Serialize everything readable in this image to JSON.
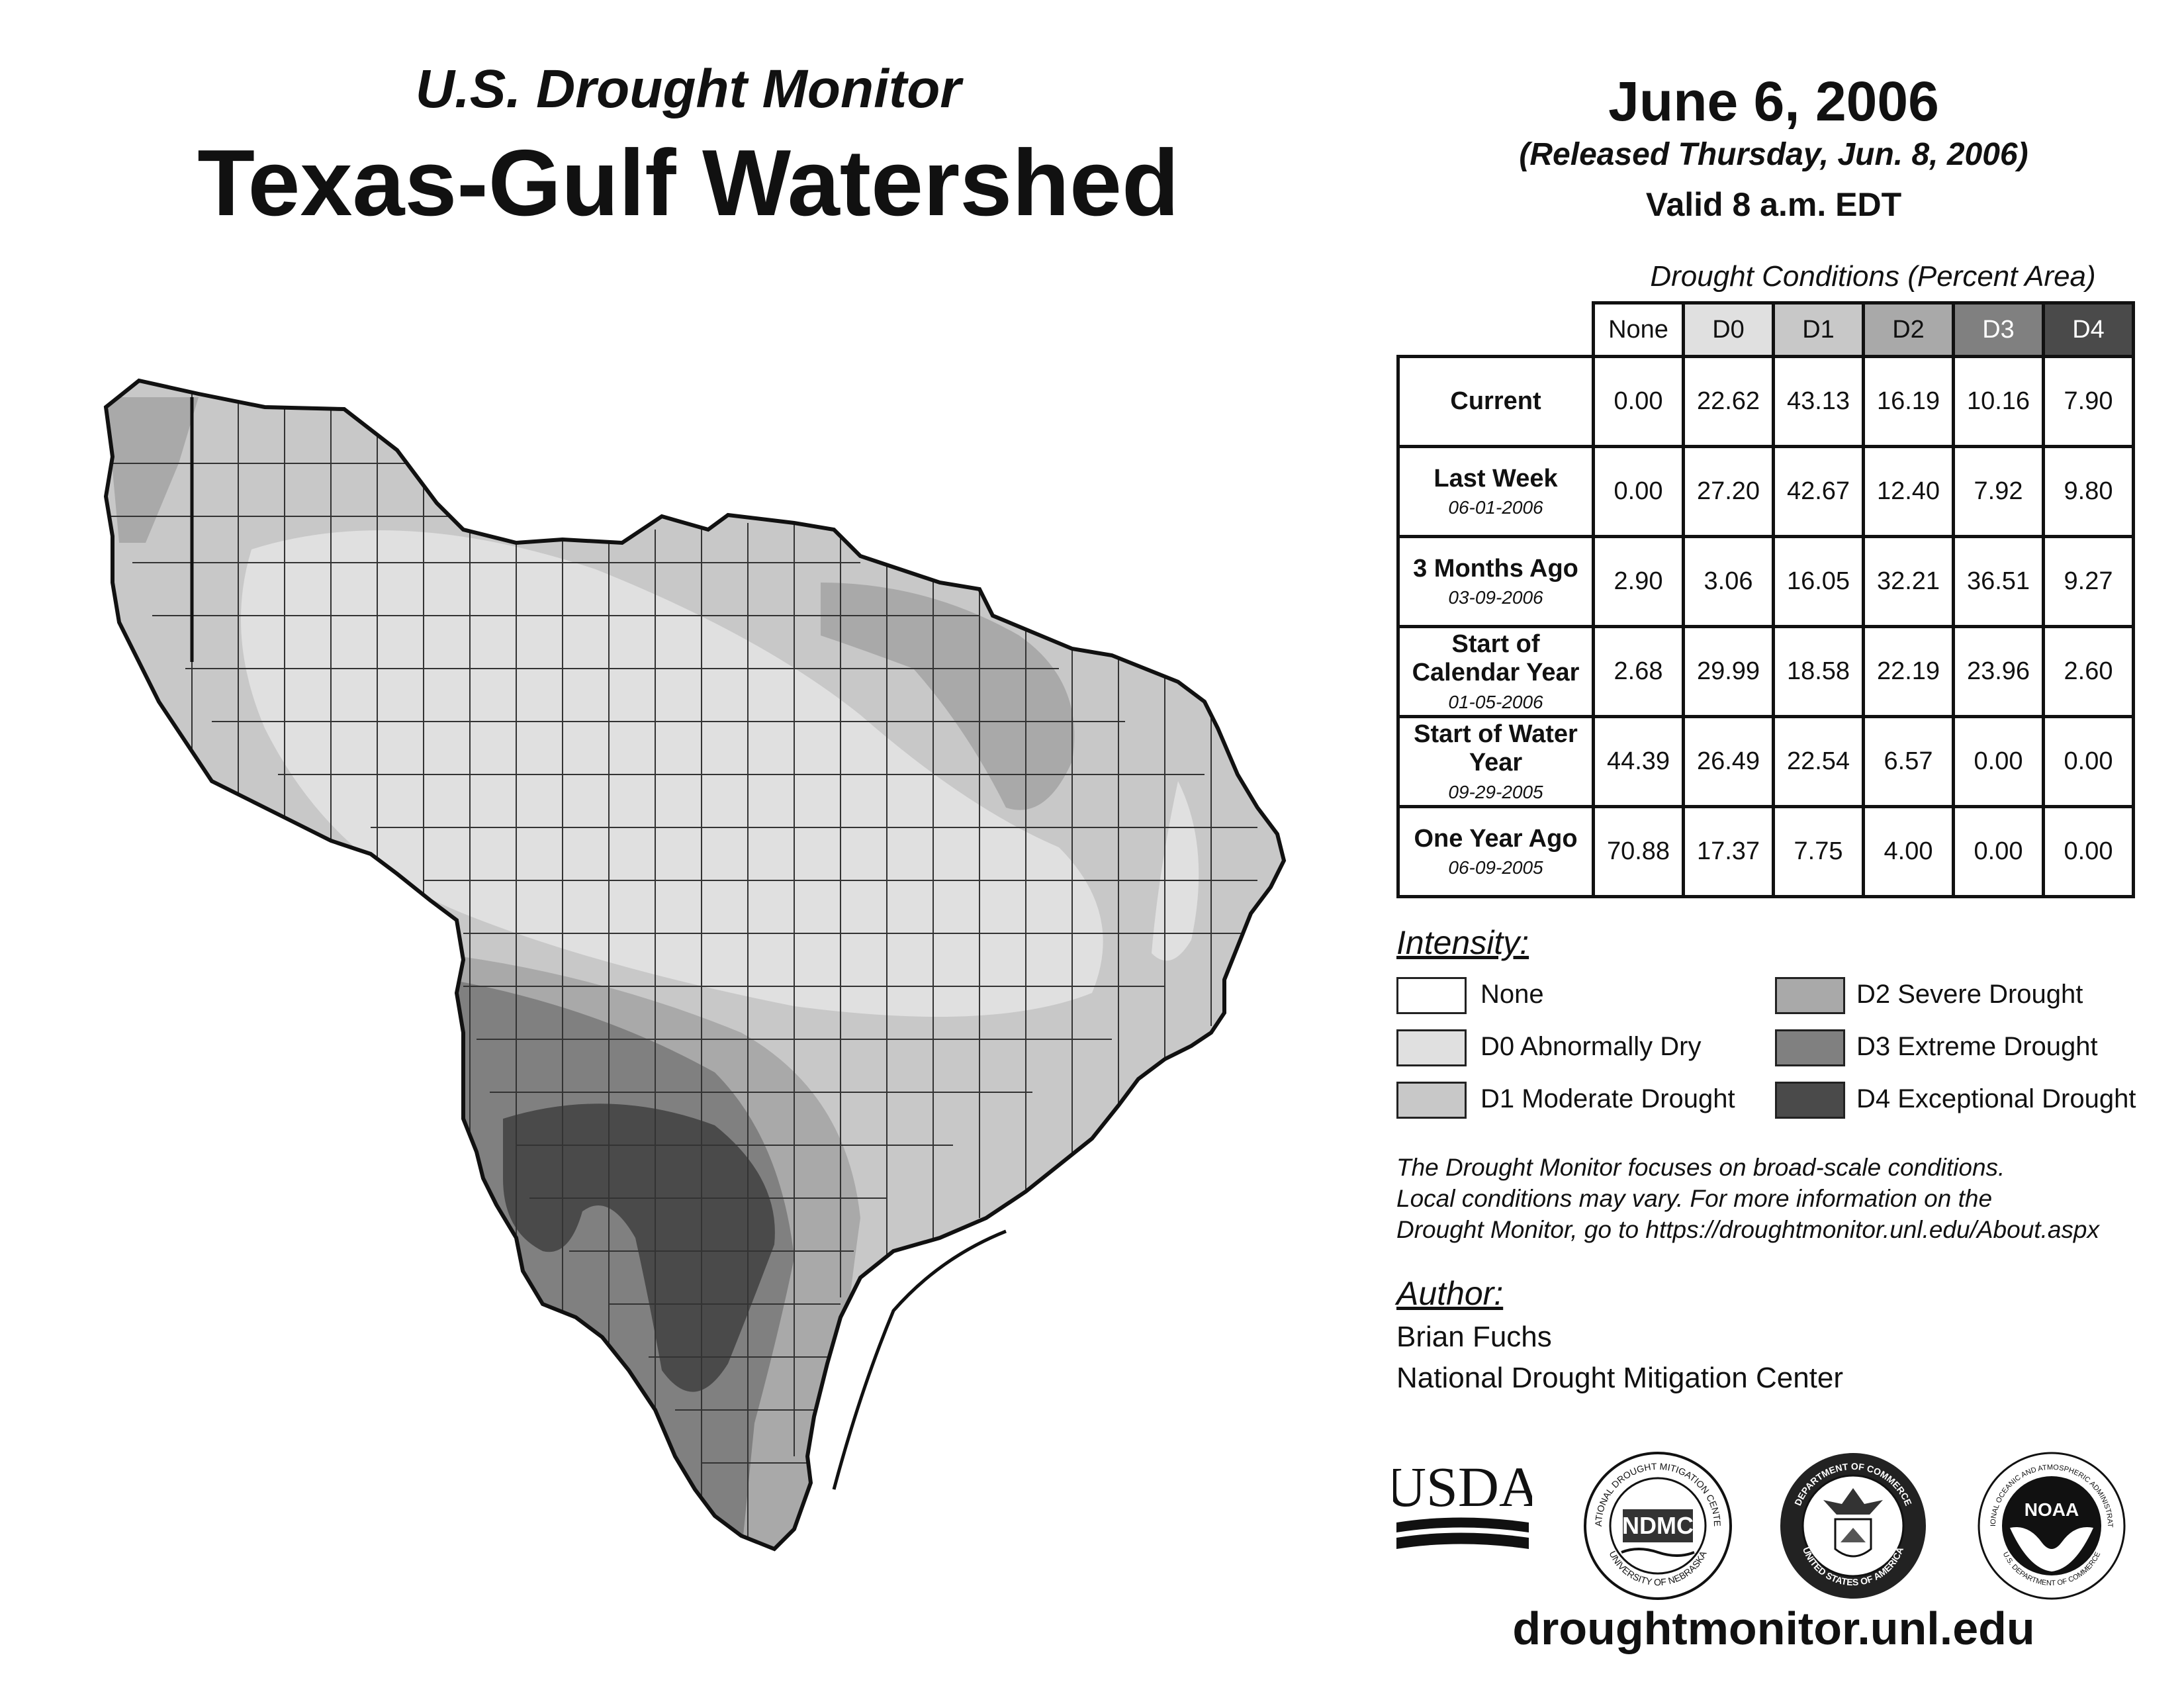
{
  "header": {
    "subtitle": "U.S. Drought Monitor",
    "title": "Texas-Gulf Watershed",
    "date": "June 6, 2006",
    "released": "(Released Thursday, Jun. 8, 2006)",
    "valid": "Valid 8 a.m. EDT"
  },
  "table": {
    "title": "Drought Conditions (Percent Area)",
    "columns": [
      "None",
      "D0",
      "D1",
      "D2",
      "D3",
      "D4"
    ],
    "rows": [
      {
        "label": "Current",
        "date": "",
        "values": [
          "0.00",
          "22.62",
          "43.13",
          "16.19",
          "10.16",
          "7.90"
        ]
      },
      {
        "label": "Last Week",
        "date": "06-01-2006",
        "values": [
          "0.00",
          "27.20",
          "42.67",
          "12.40",
          "7.92",
          "9.80"
        ]
      },
      {
        "label": "3 Months Ago",
        "date": "03-09-2006",
        "values": [
          "2.90",
          "3.06",
          "16.05",
          "32.21",
          "36.51",
          "9.27"
        ]
      },
      {
        "label": "Start of Calendar Year",
        "date": "01-05-2006",
        "values": [
          "2.68",
          "29.99",
          "18.58",
          "22.19",
          "23.96",
          "2.60"
        ]
      },
      {
        "label": "Start of Water Year",
        "date": "09-29-2005",
        "values": [
          "44.39",
          "26.49",
          "22.54",
          "6.57",
          "0.00",
          "0.00"
        ]
      },
      {
        "label": "One Year Ago",
        "date": "06-09-2005",
        "values": [
          "70.88",
          "17.37",
          "7.75",
          "4.00",
          "0.00",
          "0.00"
        ]
      }
    ]
  },
  "legend": {
    "heading": "Intensity:",
    "items": [
      {
        "label": "None",
        "color": "#ffffff"
      },
      {
        "label": "D0 Abnormally Dry",
        "color": "#e0e0e0"
      },
      {
        "label": "D1 Moderate Drought",
        "color": "#c8c8c8"
      },
      {
        "label": "D2 Severe Drought",
        "color": "#a9a9a9"
      },
      {
        "label": "D3 Extreme Drought",
        "color": "#808080"
      },
      {
        "label": "D4 Exceptional Drought",
        "color": "#4a4a4a"
      }
    ]
  },
  "disclaimer": {
    "line1": "The Drought Monitor focuses on broad-scale conditions.",
    "line2": "Local conditions may vary. For more information on the",
    "line3": "Drought Monitor, go to https://droughtmonitor.unl.edu/About.aspx"
  },
  "author": {
    "heading": "Author:",
    "name": "Brian Fuchs",
    "org": "National Drought Mitigation Center"
  },
  "logos": {
    "usda": "USDA",
    "ndmc": "NDMC",
    "ndmc_ring_top": "NATIONAL DROUGHT MITIGATION CENTER",
    "ndmc_ring_bottom": "UNIVERSITY OF NEBRASKA",
    "doc_ring_top": "DEPARTMENT OF COMMERCE",
    "doc_ring_bottom": "UNITED STATES OF AMERICA",
    "noaa": "NOAA",
    "noaa_ring_top": "NATIONAL OCEANIC AND ATMOSPHERIC ADMINISTRATION",
    "noaa_ring_bottom": "U.S. DEPARTMENT OF COMMERCE"
  },
  "website": "droughtmonitor.unl.edu"
}
